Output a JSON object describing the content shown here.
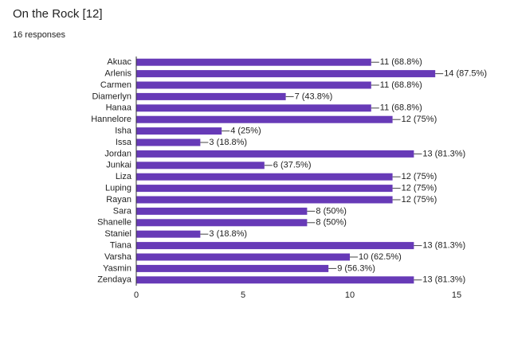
{
  "chart_data": {
    "type": "bar",
    "orientation": "horizontal",
    "title": "On the Rock [12]",
    "subtitle": "16 responses",
    "categories": [
      "Akuac",
      "Arlenis",
      "Carmen",
      "Diamerlyn",
      "Hanaa",
      "Hannelore",
      "Isha",
      "Issa",
      "Jordan",
      "Junkai",
      "Liza",
      "Luping",
      "Rayan",
      "Sara",
      "Shanelle",
      "Staniel",
      "Tiana",
      "Varsha",
      "Yasmin",
      "Zendaya"
    ],
    "values": [
      11,
      14,
      11,
      7,
      11,
      12,
      4,
      3,
      13,
      6,
      12,
      12,
      12,
      8,
      8,
      3,
      13,
      10,
      9,
      13
    ],
    "value_labels": [
      "11 (68.8%)",
      "14 (87.5%)",
      "11 (68.8%)",
      "7 (43.8%)",
      "11 (68.8%)",
      "12 (75%)",
      "4 (25%)",
      "3 (18.8%)",
      "13 (81.3%)",
      "6 (37.5%)",
      "12 (75%)",
      "12 (75%)",
      "12 (75%)",
      "8 (50%)",
      "8 (50%)",
      "3 (18.8%)",
      "13 (81.3%)",
      "10 (62.5%)",
      "9 (56.3%)",
      "13 (81.3%)"
    ],
    "color": "#673ab7",
    "xlim": [
      0,
      15
    ],
    "xticks": [
      0,
      5,
      10,
      15
    ],
    "grid": false
  }
}
